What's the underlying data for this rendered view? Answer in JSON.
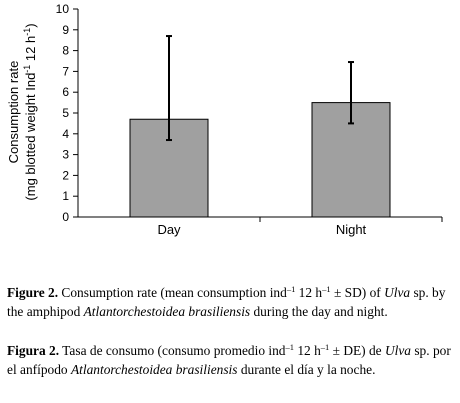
{
  "chart_data": {
    "type": "bar",
    "categories": [
      "Day",
      "Night"
    ],
    "values": [
      4.7,
      5.5
    ],
    "error_high": [
      8.7,
      7.45
    ],
    "error_low": [
      3.7,
      4.5
    ],
    "ylim": [
      0,
      10
    ],
    "yticks": [
      "0",
      "1",
      "2",
      "3",
      "4",
      "5",
      "6",
      "7",
      "8",
      "9",
      "10"
    ],
    "ylabel_line1": "Consumption rate",
    "ylabel_line2_prefix": "(mg blotted weight Ind",
    "ylabel_sup1": "-1",
    "ylabel_mid": " 12 h",
    "ylabel_sup2": "-1",
    "ylabel_end": ")",
    "bar_color": "#a0a0a0",
    "grid": false
  },
  "caption_en": {
    "label": "Figure 2.",
    "t1": " Consumption rate (mean consumption ind",
    "s1": "–1",
    "t2": " 12 h",
    "s2": "–1",
    "t3": " ± SD) of ",
    "i1": "Ulva",
    "t4": " sp. by the amphipod ",
    "i2": "Atlantorchestoidea brasiliensis",
    "t5": " during the day and night."
  },
  "caption_es": {
    "label": "Figura 2.",
    "t1": " Tasa de consumo (consumo promedio ind",
    "s1": "–1",
    "t2": " 12 h",
    "s2": "–1",
    "t3": " ± DE) de ",
    "i1": "Ulva",
    "t4": " sp. por el anfípodo ",
    "i2": "Atlantorchestoidea brasiliensis",
    "t5": " durante el día y la noche."
  }
}
